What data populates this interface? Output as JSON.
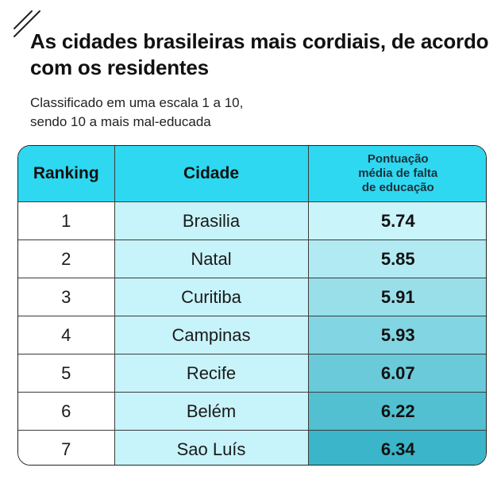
{
  "header": {
    "title": "As cidades brasileiras mais cordiais, de acordo com os residentes",
    "subtitle_lines": [
      "Classificado em uma escala 1 a 10,",
      "sendo 10 a mais mal-educada"
    ]
  },
  "table": {
    "columns": {
      "rank": "Ranking",
      "city": "Cidade",
      "score_lines": [
        "Pontuação",
        "média de falta",
        "de educação"
      ]
    }
  },
  "colors": {
    "header_bg": "#2ed8f0",
    "city_bg": "#c7f3fa",
    "score_gradient_start": "#c9f4fa",
    "score_gradient_end": "#3ab5c9"
  },
  "chart_data": {
    "type": "table",
    "title": "As cidades brasileiras mais cordiais, de acordo com os residentes",
    "subtitle": "Classificado em uma escala 1 a 10, sendo 10 a mais mal-educada",
    "headers": [
      "Ranking",
      "Cidade",
      "Pontuação média de falta de educação"
    ],
    "rows": [
      {
        "rank": "1",
        "city": "Brasilia",
        "score": "5.74"
      },
      {
        "rank": "2",
        "city": "Natal",
        "score": "5.85"
      },
      {
        "rank": "3",
        "city": "Curitiba",
        "score": "5.91"
      },
      {
        "rank": "4",
        "city": "Campinas",
        "score": "5.93"
      },
      {
        "rank": "5",
        "city": "Recife",
        "score": "6.07"
      },
      {
        "rank": "6",
        "city": "Belém",
        "score": "6.22"
      },
      {
        "rank": "7",
        "city": "Sao Luís",
        "score": "6.34"
      }
    ]
  }
}
